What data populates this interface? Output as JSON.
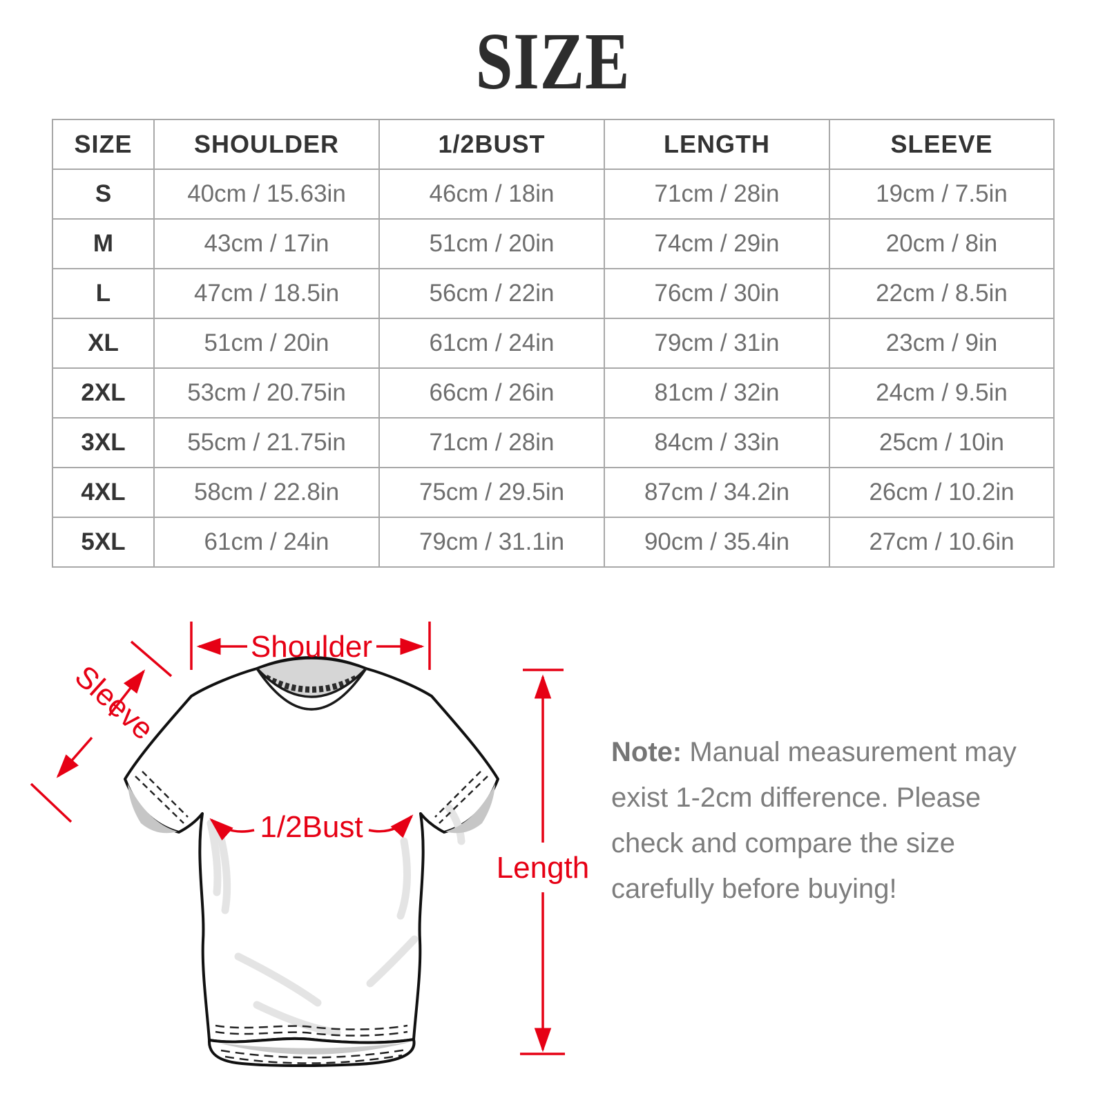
{
  "page": {
    "title": "SIZE"
  },
  "table": {
    "columns": [
      "SIZE",
      "SHOULDER",
      "1/2BUST",
      "LENGTH",
      "SLEEVE"
    ],
    "rows": [
      [
        "S",
        "40cm / 15.63in",
        "46cm / 18in",
        "71cm / 28in",
        "19cm / 7.5in"
      ],
      [
        "M",
        "43cm / 17in",
        "51cm / 20in",
        "74cm / 29in",
        "20cm / 8in"
      ],
      [
        "L",
        "47cm / 18.5in",
        "56cm / 22in",
        "76cm / 30in",
        "22cm / 8.5in"
      ],
      [
        "XL",
        "51cm / 20in",
        "61cm / 24in",
        "79cm / 31in",
        "23cm / 9in"
      ],
      [
        "2XL",
        "53cm / 20.75in",
        "66cm / 26in",
        "81cm / 32in",
        "24cm / 9.5in"
      ],
      [
        "3XL",
        "55cm / 21.75in",
        "71cm / 28in",
        "84cm / 33in",
        "25cm / 10in"
      ],
      [
        "4XL",
        "58cm / 22.8in",
        "75cm / 29.5in",
        "87cm / 34.2in",
        "26cm / 10.2in"
      ],
      [
        "5XL",
        "61cm / 24in",
        "79cm / 31.1in",
        "90cm / 35.4in",
        "27cm / 10.6in"
      ]
    ]
  },
  "diagram": {
    "accent_color": "#e60014",
    "labels": {
      "shoulder": "Shoulder",
      "sleeve": "Sleeve",
      "half_bust": "1/2Bust",
      "length": "Length"
    }
  },
  "note": {
    "prefix": "Note:",
    "text": " Manual measurement may exist 1-2cm difference. Please check and compare the size carefully before buying!"
  }
}
